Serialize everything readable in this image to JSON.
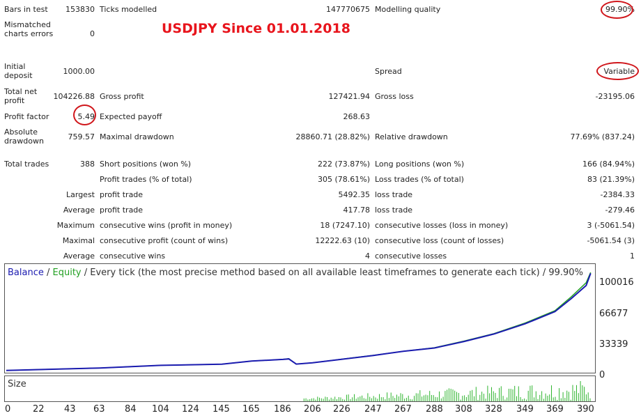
{
  "headline": "USDJPY Since 01.01.2018",
  "report": {
    "bars_label": "Bars in test",
    "bars_value": "153830",
    "ticks_label": "Ticks modelled",
    "ticks_value": "147770675",
    "quality_label": "Modelling quality",
    "quality_value": "99.90%",
    "mismatched_label": "Mismatched charts errors",
    "mismatched_value": "0",
    "deposit_label": "Initial deposit",
    "deposit_value": "1000.00",
    "spread_label": "Spread",
    "spread_value": "Variable",
    "net_label": "Total net profit",
    "net_value": "104226.88",
    "gross_profit_label": "Gross profit",
    "gross_profit_value": "127421.94",
    "gross_loss_label": "Gross loss",
    "gross_loss_value": "-23195.06",
    "pf_label": "Profit factor",
    "pf_value": "5.49",
    "payoff_label": "Expected payoff",
    "payoff_value": "268.63",
    "abs_dd_label": "Absolute drawdown",
    "abs_dd_value": "759.57",
    "max_dd_label": "Maximal drawdown",
    "max_dd_value": "28860.71 (28.82%)",
    "rel_dd_label": "Relative drawdown",
    "rel_dd_value": "77.69% (837.24)",
    "trades_label": "Total trades",
    "trades_value": "388",
    "short_label": "Short positions (won %)",
    "short_value": "222 (73.87%)",
    "long_label": "Long positions (won %)",
    "long_value": "166 (84.94%)",
    "profit_trades_label": "Profit trades (% of total)",
    "profit_trades_value": "305 (78.61%)",
    "loss_trades_label": "Loss trades (% of total)",
    "loss_trades_value": "83 (21.39%)",
    "largest_label": "Largest",
    "largest_profit_label": "profit trade",
    "largest_profit_value": "5492.35",
    "largest_loss_label": "loss trade",
    "largest_loss_value": "-2384.33",
    "average_label": "Average",
    "average_profit_label": "profit trade",
    "average_profit_value": "417.78",
    "average_loss_label": "loss trade",
    "average_loss_value": "-279.46",
    "maximum_label": "Maximum",
    "max_wins_label": "consecutive wins (profit in money)",
    "max_wins_value": "18 (7247.10)",
    "max_losses_label": "consecutive losses (loss in money)",
    "max_losses_value": "3 (-5061.54)",
    "maximal_label": "Maximal",
    "maximal_profit_label": "consecutive profit (count of wins)",
    "maximal_profit_value": "12222.63 (10)",
    "maximal_loss_label": "consecutive loss (count of losses)",
    "maximal_loss_value": "-5061.54 (3)",
    "average2_label": "Average",
    "avg_wins_label": "consecutive wins",
    "avg_wins_value": "4",
    "avg_losses_label": "consecutive losses",
    "avg_losses_value": "1"
  },
  "chart": {
    "legend_balance": "Balance",
    "legend_sep1": " / ",
    "legend_equity": "Equity",
    "legend_rest": " / Every tick (the most precise method based on all available least timeframes to generate each tick) / 99.90%",
    "balance_color": "#1b1bb0",
    "equity_color": "#22a022",
    "y_ticks": [
      "100016",
      "66677",
      "33339",
      "0"
    ],
    "size_label": "Size",
    "x_ticks": [
      "0",
      "22",
      "43",
      "63",
      "84",
      "104",
      "124",
      "145",
      "165",
      "186",
      "206",
      "226",
      "247",
      "267",
      "288",
      "308",
      "328",
      "349",
      "369",
      "390"
    ]
  },
  "chart_data": {
    "type": "line",
    "xlabel": "",
    "ylabel": "",
    "xlim": [
      0,
      395
    ],
    "ylim": [
      0,
      112000
    ],
    "series": [
      {
        "name": "Balance",
        "x": [
          0,
          22,
          63,
          104,
          145,
          165,
          186,
          190,
          195,
          206,
          247,
          267,
          288,
          308,
          328,
          349,
          369,
          380,
          390,
          393
        ],
        "y": [
          1000,
          1900,
          3600,
          6400,
          7600,
          11000,
          12800,
          13300,
          7800,
          9200,
          17000,
          21500,
          25000,
          32000,
          40000,
          51000,
          64000,
          78000,
          92000,
          105000
        ]
      },
      {
        "name": "Equity",
        "x": [
          0,
          22,
          63,
          104,
          145,
          165,
          186,
          190,
          195,
          206,
          247,
          267,
          288,
          308,
          328,
          349,
          369,
          380,
          390,
          393
        ],
        "y": [
          1000,
          1900,
          3600,
          6400,
          7600,
          11000,
          12800,
          13600,
          7800,
          9200,
          17200,
          21500,
          25300,
          32500,
          40500,
          51800,
          65000,
          80000,
          95000,
          106000
        ]
      }
    ],
    "volume": {
      "name": "Size",
      "x_start": 200,
      "x_end": 393
    }
  }
}
